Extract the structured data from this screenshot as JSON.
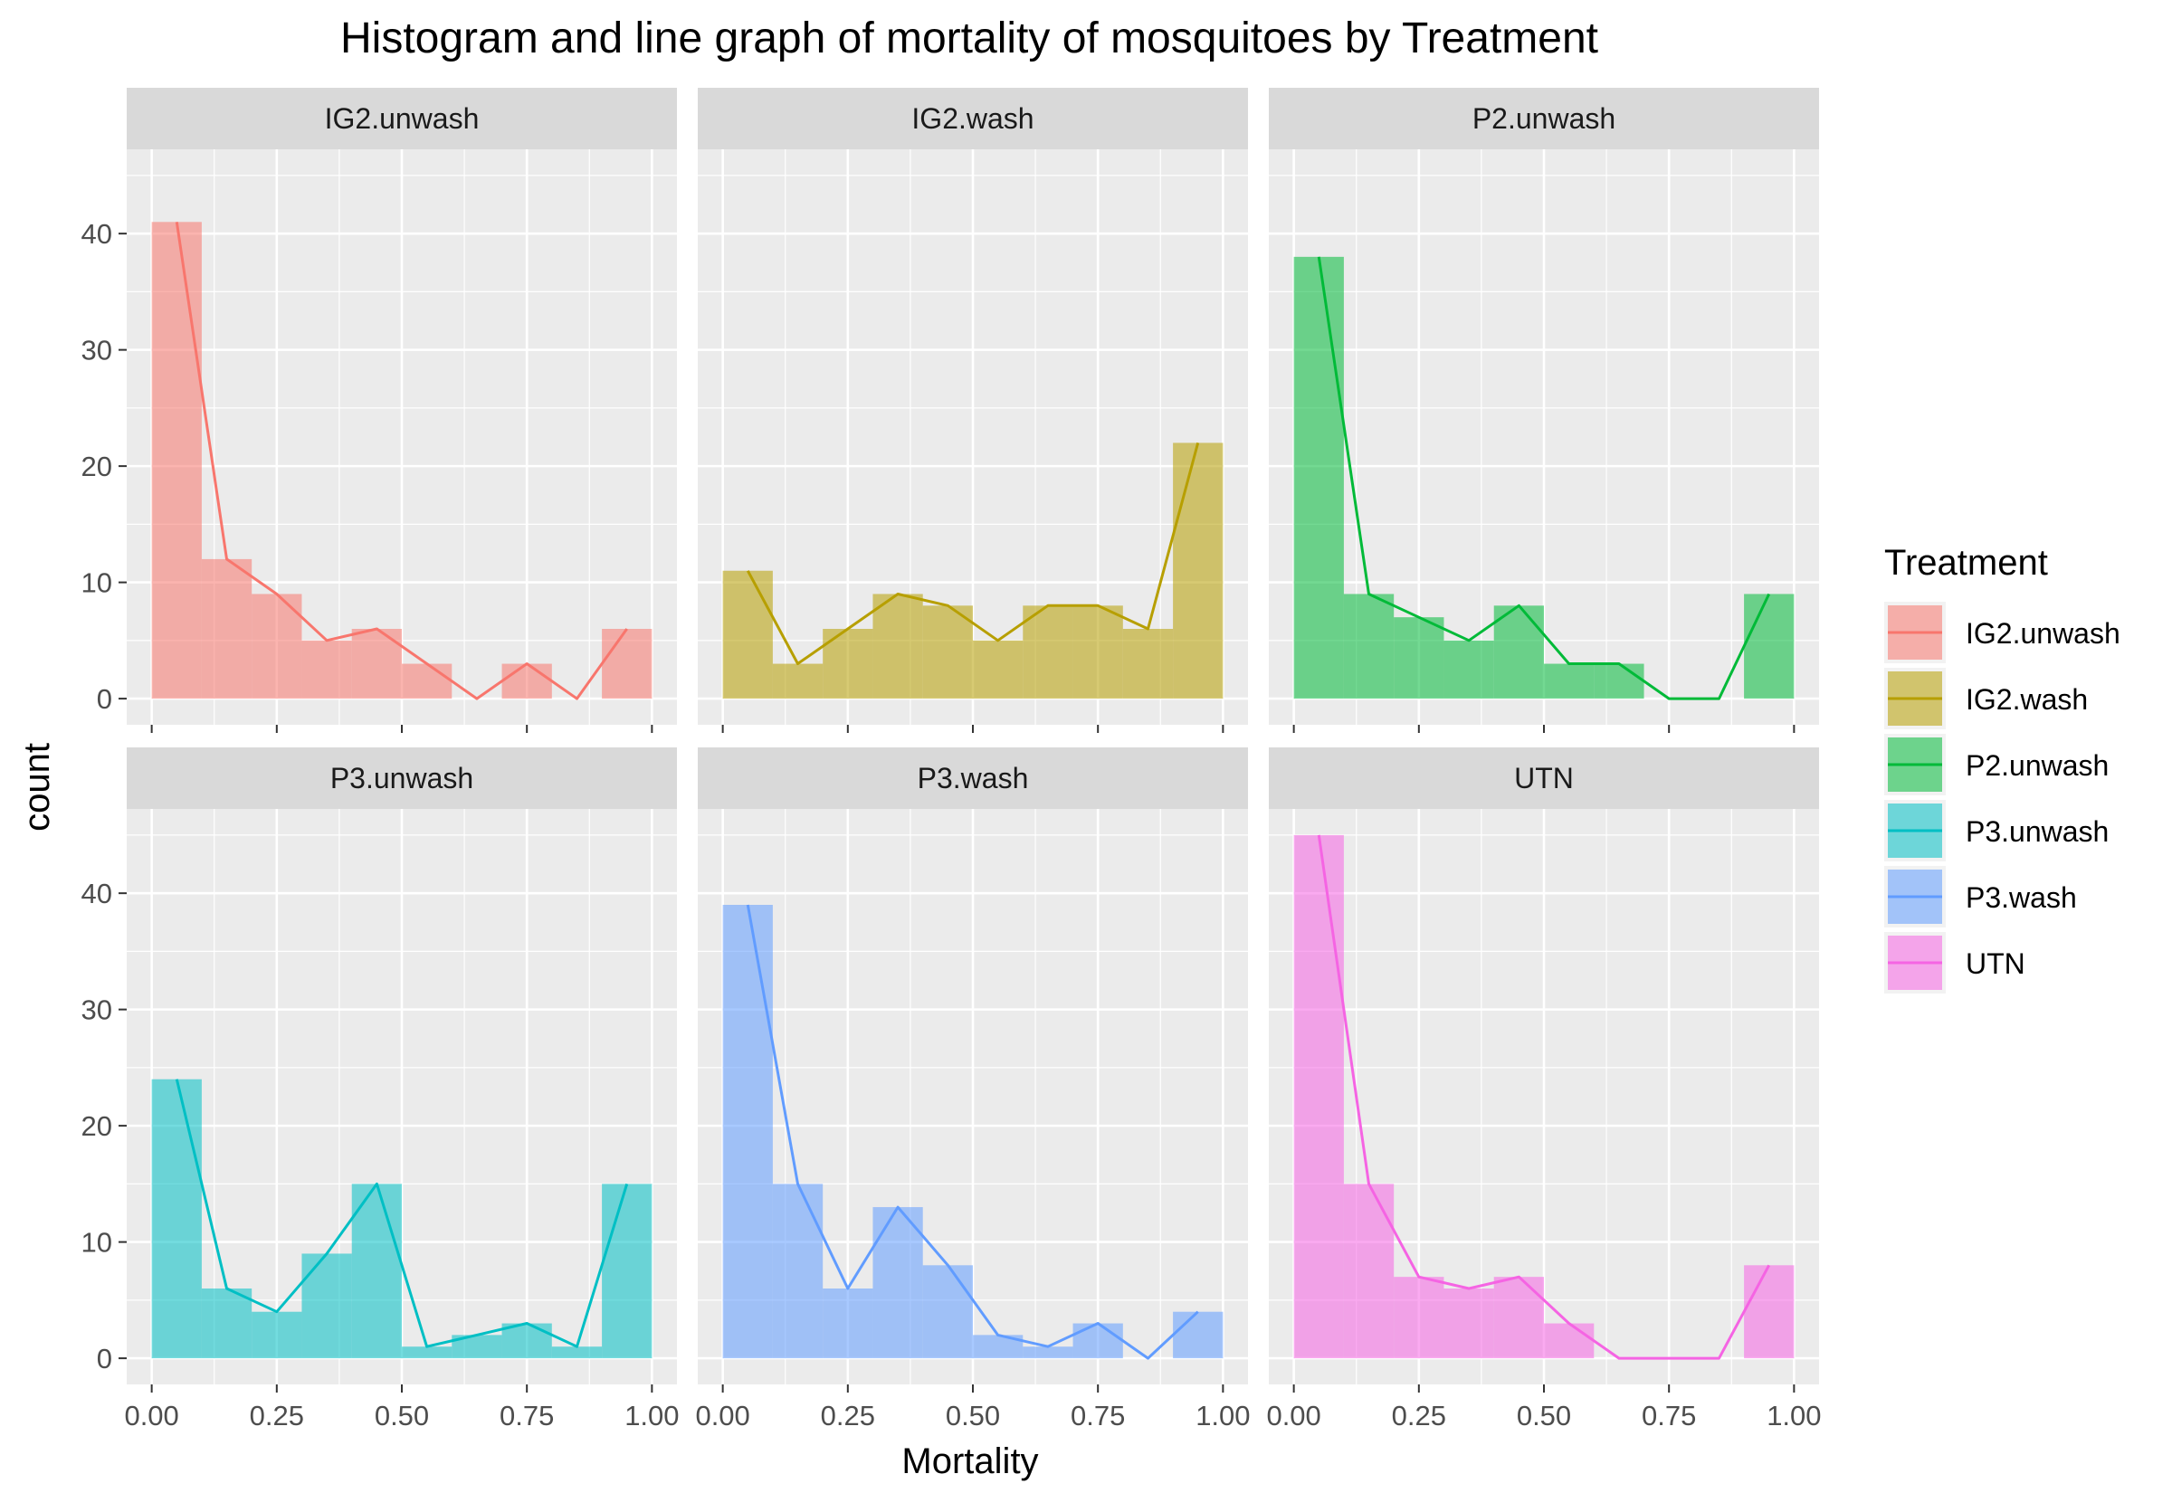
{
  "chart_data": {
    "type": "bar",
    "title": "Histogram and line graph of mortality of mosquitoes by Treatment",
    "xlabel": "Mortality",
    "ylabel": "count",
    "xlim": [
      0,
      1
    ],
    "ylim": [
      0,
      45
    ],
    "x_ticks": [
      "0.00",
      "0.25",
      "0.50",
      "0.75",
      "1.00"
    ],
    "y_ticks": [
      "0",
      "10",
      "20",
      "30",
      "40"
    ],
    "bin_width": 0.1,
    "bin_centers": [
      0.05,
      0.15,
      0.25,
      0.35,
      0.45,
      0.55,
      0.65,
      0.75,
      0.85,
      0.95
    ],
    "legend": {
      "title": "Treatment",
      "position": "right"
    },
    "grid": true,
    "series": [
      {
        "name": "IG2.unwash",
        "color": "#F8766D",
        "values": [
          41,
          12,
          9,
          5,
          6,
          3,
          0,
          3,
          0,
          6
        ]
      },
      {
        "name": "IG2.wash",
        "color": "#B79F00",
        "values": [
          11,
          3,
          6,
          9,
          8,
          5,
          8,
          8,
          6,
          22
        ]
      },
      {
        "name": "P2.unwash",
        "color": "#00BA38",
        "values": [
          38,
          9,
          7,
          5,
          8,
          3,
          3,
          0,
          0,
          9
        ]
      },
      {
        "name": "P3.unwash",
        "color": "#00BFC4",
        "values": [
          24,
          6,
          4,
          9,
          15,
          1,
          2,
          3,
          1,
          15
        ]
      },
      {
        "name": "P3.wash",
        "color": "#619CFF",
        "values": [
          39,
          15,
          6,
          13,
          8,
          2,
          1,
          3,
          0,
          4
        ]
      },
      {
        "name": "UTN",
        "color": "#F564E3",
        "values": [
          45,
          15,
          7,
          6,
          7,
          3,
          0,
          0,
          0,
          8
        ]
      }
    ]
  }
}
